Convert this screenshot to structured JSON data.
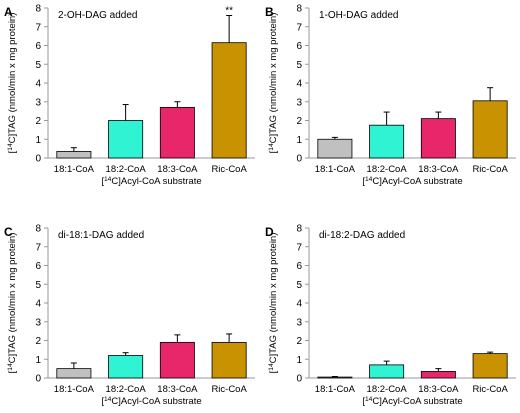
{
  "chart_data": [
    {
      "type": "bar",
      "panel": "A",
      "title": "2-OH-DAG added",
      "categories": [
        "18:1-CoA",
        "18:2-CoA",
        "18:3-CoA",
        "Ric-CoA"
      ],
      "values": [
        0.35,
        2.0,
        2.7,
        6.15
      ],
      "errors": [
        0.2,
        0.85,
        0.3,
        1.45
      ],
      "annotations": [
        {
          "category": "Ric-CoA",
          "text": "**"
        }
      ],
      "xlabel": "[14C]Acyl-CoA substrate",
      "ylabel": "[14C]TAG (nmol/min x mg protein)",
      "ylim": [
        0,
        8
      ],
      "yticks": [
        0,
        1,
        2,
        3,
        4,
        5,
        6,
        7,
        8
      ],
      "grid": false
    },
    {
      "type": "bar",
      "panel": "B",
      "title": "1-OH-DAG added",
      "categories": [
        "18:1-CoA",
        "18:2-CoA",
        "18:3-CoA",
        "Ric-CoA"
      ],
      "values": [
        1.0,
        1.75,
        2.1,
        3.05
      ],
      "errors": [
        0.1,
        0.7,
        0.35,
        0.7
      ],
      "annotations": [],
      "xlabel": "[14C]Acyl-CoA substrate",
      "ylabel": "[14C]TAG (nmol/min x mg protein)",
      "ylim": [
        0,
        8
      ],
      "yticks": [
        0,
        1,
        2,
        3,
        4,
        5,
        6,
        7,
        8
      ],
      "grid": false
    },
    {
      "type": "bar",
      "panel": "C",
      "title": "di-18:1-DAG added",
      "categories": [
        "18:1-CoA",
        "18:2-CoA",
        "18:3-CoA",
        "Ric-CoA"
      ],
      "values": [
        0.5,
        1.2,
        1.9,
        1.9
      ],
      "errors": [
        0.3,
        0.15,
        0.4,
        0.45
      ],
      "annotations": [],
      "xlabel": "[14C]Acyl-CoA substrate",
      "ylabel": "[14C]TAG (nmol/min x mg protein)",
      "ylim": [
        0,
        8
      ],
      "yticks": [
        0,
        1,
        2,
        3,
        4,
        5,
        6,
        7,
        8
      ],
      "grid": false
    },
    {
      "type": "bar",
      "panel": "D",
      "title": "di-18:2-DAG added",
      "categories": [
        "18:1-CoA",
        "18:2-CoA",
        "18:3-CoA",
        "Ric-CoA"
      ],
      "values": [
        0.05,
        0.7,
        0.35,
        1.3
      ],
      "errors": [
        0.03,
        0.2,
        0.15,
        0.08
      ],
      "annotations": [],
      "xlabel": "[14C]Acyl-CoA substrate",
      "ylabel": "[14C]TAG (nmol/min x mg protein)",
      "ylim": [
        0,
        8
      ],
      "yticks": [
        0,
        1,
        2,
        3,
        4,
        5,
        6,
        7,
        8
      ],
      "grid": false
    }
  ],
  "colors": {
    "bars": [
      "#c0c0c0",
      "#2ff3d2",
      "#e8266a",
      "#c89200"
    ],
    "axis": "#9a9a9a",
    "bar_outline": "#000000",
    "text": "#000000"
  }
}
